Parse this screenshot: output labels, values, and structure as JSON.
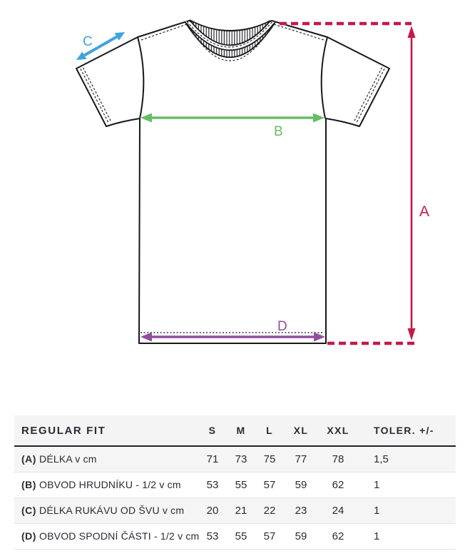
{
  "diagram": {
    "type": "tshirt-measurement-guide",
    "labels": {
      "a": "A",
      "b": "B",
      "c": "C",
      "d": "D"
    },
    "colors": {
      "a_length": "#c5194a",
      "b_chest": "#67bd63",
      "c_sleeve": "#3da4de",
      "d_hem": "#8f4f9f",
      "shirt_fill": "#d7d7d9",
      "shirt_outline": "#17171d"
    }
  },
  "table": {
    "title": "REGULAR FIT",
    "columns": [
      "S",
      "M",
      "L",
      "XL",
      "XXL",
      "TOLER. +/-"
    ],
    "rows": [
      {
        "key": "(A)",
        "label": "DÉLKA v cm",
        "values": [
          "71",
          "73",
          "75",
          "77",
          "78",
          "1,5"
        ]
      },
      {
        "key": "(B)",
        "label": "OBVOD HRUDNÍKU - 1/2 v cm",
        "values": [
          "53",
          "55",
          "57",
          "59",
          "62",
          "1"
        ]
      },
      {
        "key": "(C)",
        "label": "DÉLKA RUKÁVU OD ŠVU v cm",
        "values": [
          "20",
          "21",
          "22",
          "23",
          "24",
          "1"
        ]
      },
      {
        "key": "(D)",
        "label": "OBVOD SPODNÍ ČÁSTI - 1/2 v cm",
        "values": [
          "53",
          "55",
          "57",
          "59",
          "62",
          "1"
        ]
      }
    ]
  }
}
